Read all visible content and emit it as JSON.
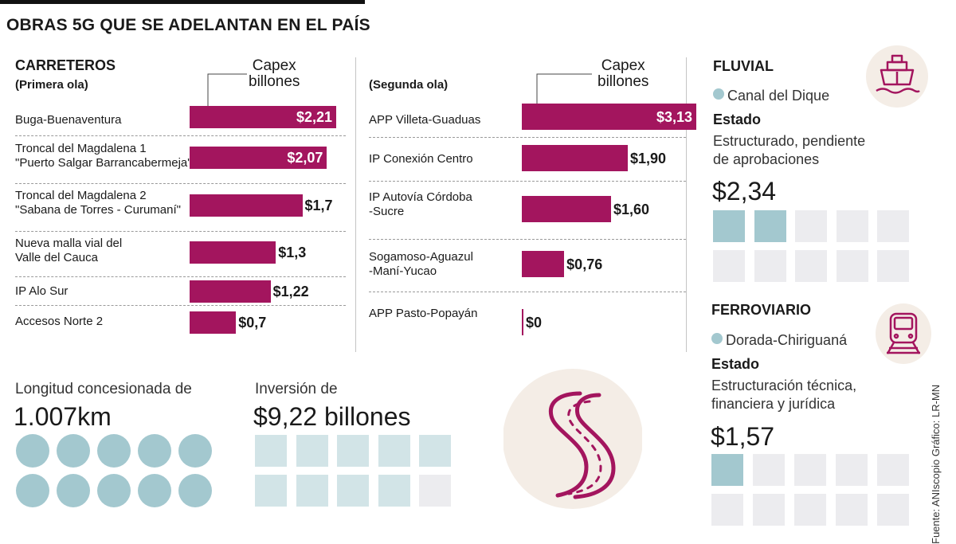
{
  "title": "OBRAS 5G QUE SE ADELANTAN EN EL PAÍS",
  "carreteros": {
    "heading": "CARRETEROS",
    "first_wave": "(Primera ola)",
    "second_wave": "(Segunda ola)",
    "capex_label_1": "Capex",
    "capex_label_2": "billones"
  },
  "chart_data": [
    {
      "type": "bar",
      "orientation": "horizontal",
      "title": "Carreteros (Primera ola)",
      "xlabel": "Capex billones",
      "categories": [
        "Buga-Buenaventura",
        "Troncal del Magdalena 1 \"Puerto Salgar Barrancabermeja\"",
        "Troncal del Magdalena 2 \"Sabana de Torres - Curumaní\"",
        "Nueva malla vial del Valle del Cauca",
        "IP Alo Sur",
        "Accesos Norte 2"
      ],
      "values": [
        2.21,
        2.07,
        1.7,
        1.3,
        1.22,
        0.7
      ],
      "value_labels": [
        "$2,21",
        "$2,07",
        "$1,7",
        "$1,3",
        "$1,22",
        "$0,7"
      ],
      "label_lines": [
        [
          "Buga-Buenaventura"
        ],
        [
          "Troncal del Magdalena 1",
          " \"Puerto Salgar Barrancabermeja\""
        ],
        [
          "Troncal del Magdalena 2",
          "\"Sabana de Torres - Curumaní\""
        ],
        [
          "Nueva malla vial del",
          "Valle del Cauca"
        ],
        [
          "IP Alo Sur"
        ],
        [
          "Accesos Norte 2"
        ]
      ],
      "xlim": [
        0,
        2.21
      ]
    },
    {
      "type": "bar",
      "orientation": "horizontal",
      "title": "Carreteros (Segunda ola)",
      "xlabel": "Capex billones",
      "categories": [
        "APP Villeta-Guaduas",
        "IP Conexión Centro",
        "IP Autovía Córdoba -Sucre",
        "Sogamoso-Aguazul -Maní-Yucao",
        "APP Pasto-Popayán"
      ],
      "values": [
        3.13,
        1.9,
        1.6,
        0.76,
        0
      ],
      "value_labels": [
        "$3,13",
        "$1,90",
        "$1,60",
        "$0,76",
        "$0"
      ],
      "label_lines": [
        [
          "APP Villeta-Guaduas"
        ],
        [
          "IP Conexión Centro"
        ],
        [
          "IP Autovía Córdoba",
          "-Sucre"
        ],
        [
          "Sogamoso-Aguazul",
          "-Maní-Yucao"
        ],
        [
          "APP Pasto-Popayán"
        ]
      ],
      "xlim": [
        0,
        3.13
      ]
    }
  ],
  "summary": {
    "length_label": "Longitud concesionada de",
    "length_value": "1.007km",
    "dots_filled": 10,
    "investment_label": "Inversión de",
    "investment_value": "$9,22 billones",
    "investment_squares": 10,
    "investment_filled": 9.22
  },
  "fluvial": {
    "heading": "FLUVIAL",
    "project": "Canal del Dique",
    "estado_label": "Estado",
    "estado_line1": "Estructurado, pendiente",
    "estado_line2": "de aprobaciones",
    "value": "$2,34",
    "squares": 10,
    "filled": 2,
    "icon": "ship-icon"
  },
  "ferroviario": {
    "heading": "FERROVIARIO",
    "project": "Dorada-Chiriguaná",
    "estado_label": "Estado",
    "estado_line1": "Estructuración técnica,",
    "estado_line2": "financiera y jurídica",
    "value": "$1,57",
    "squares": 10,
    "filled": 1,
    "icon": "train-icon"
  },
  "source": "Fuente: ANIscopio   Gráfico: LR-MN",
  "colors": {
    "bar": "#a3155e",
    "teal": "#a3c8cf",
    "gray_square": "#ececef",
    "icon_bg": "#f4ede6"
  }
}
